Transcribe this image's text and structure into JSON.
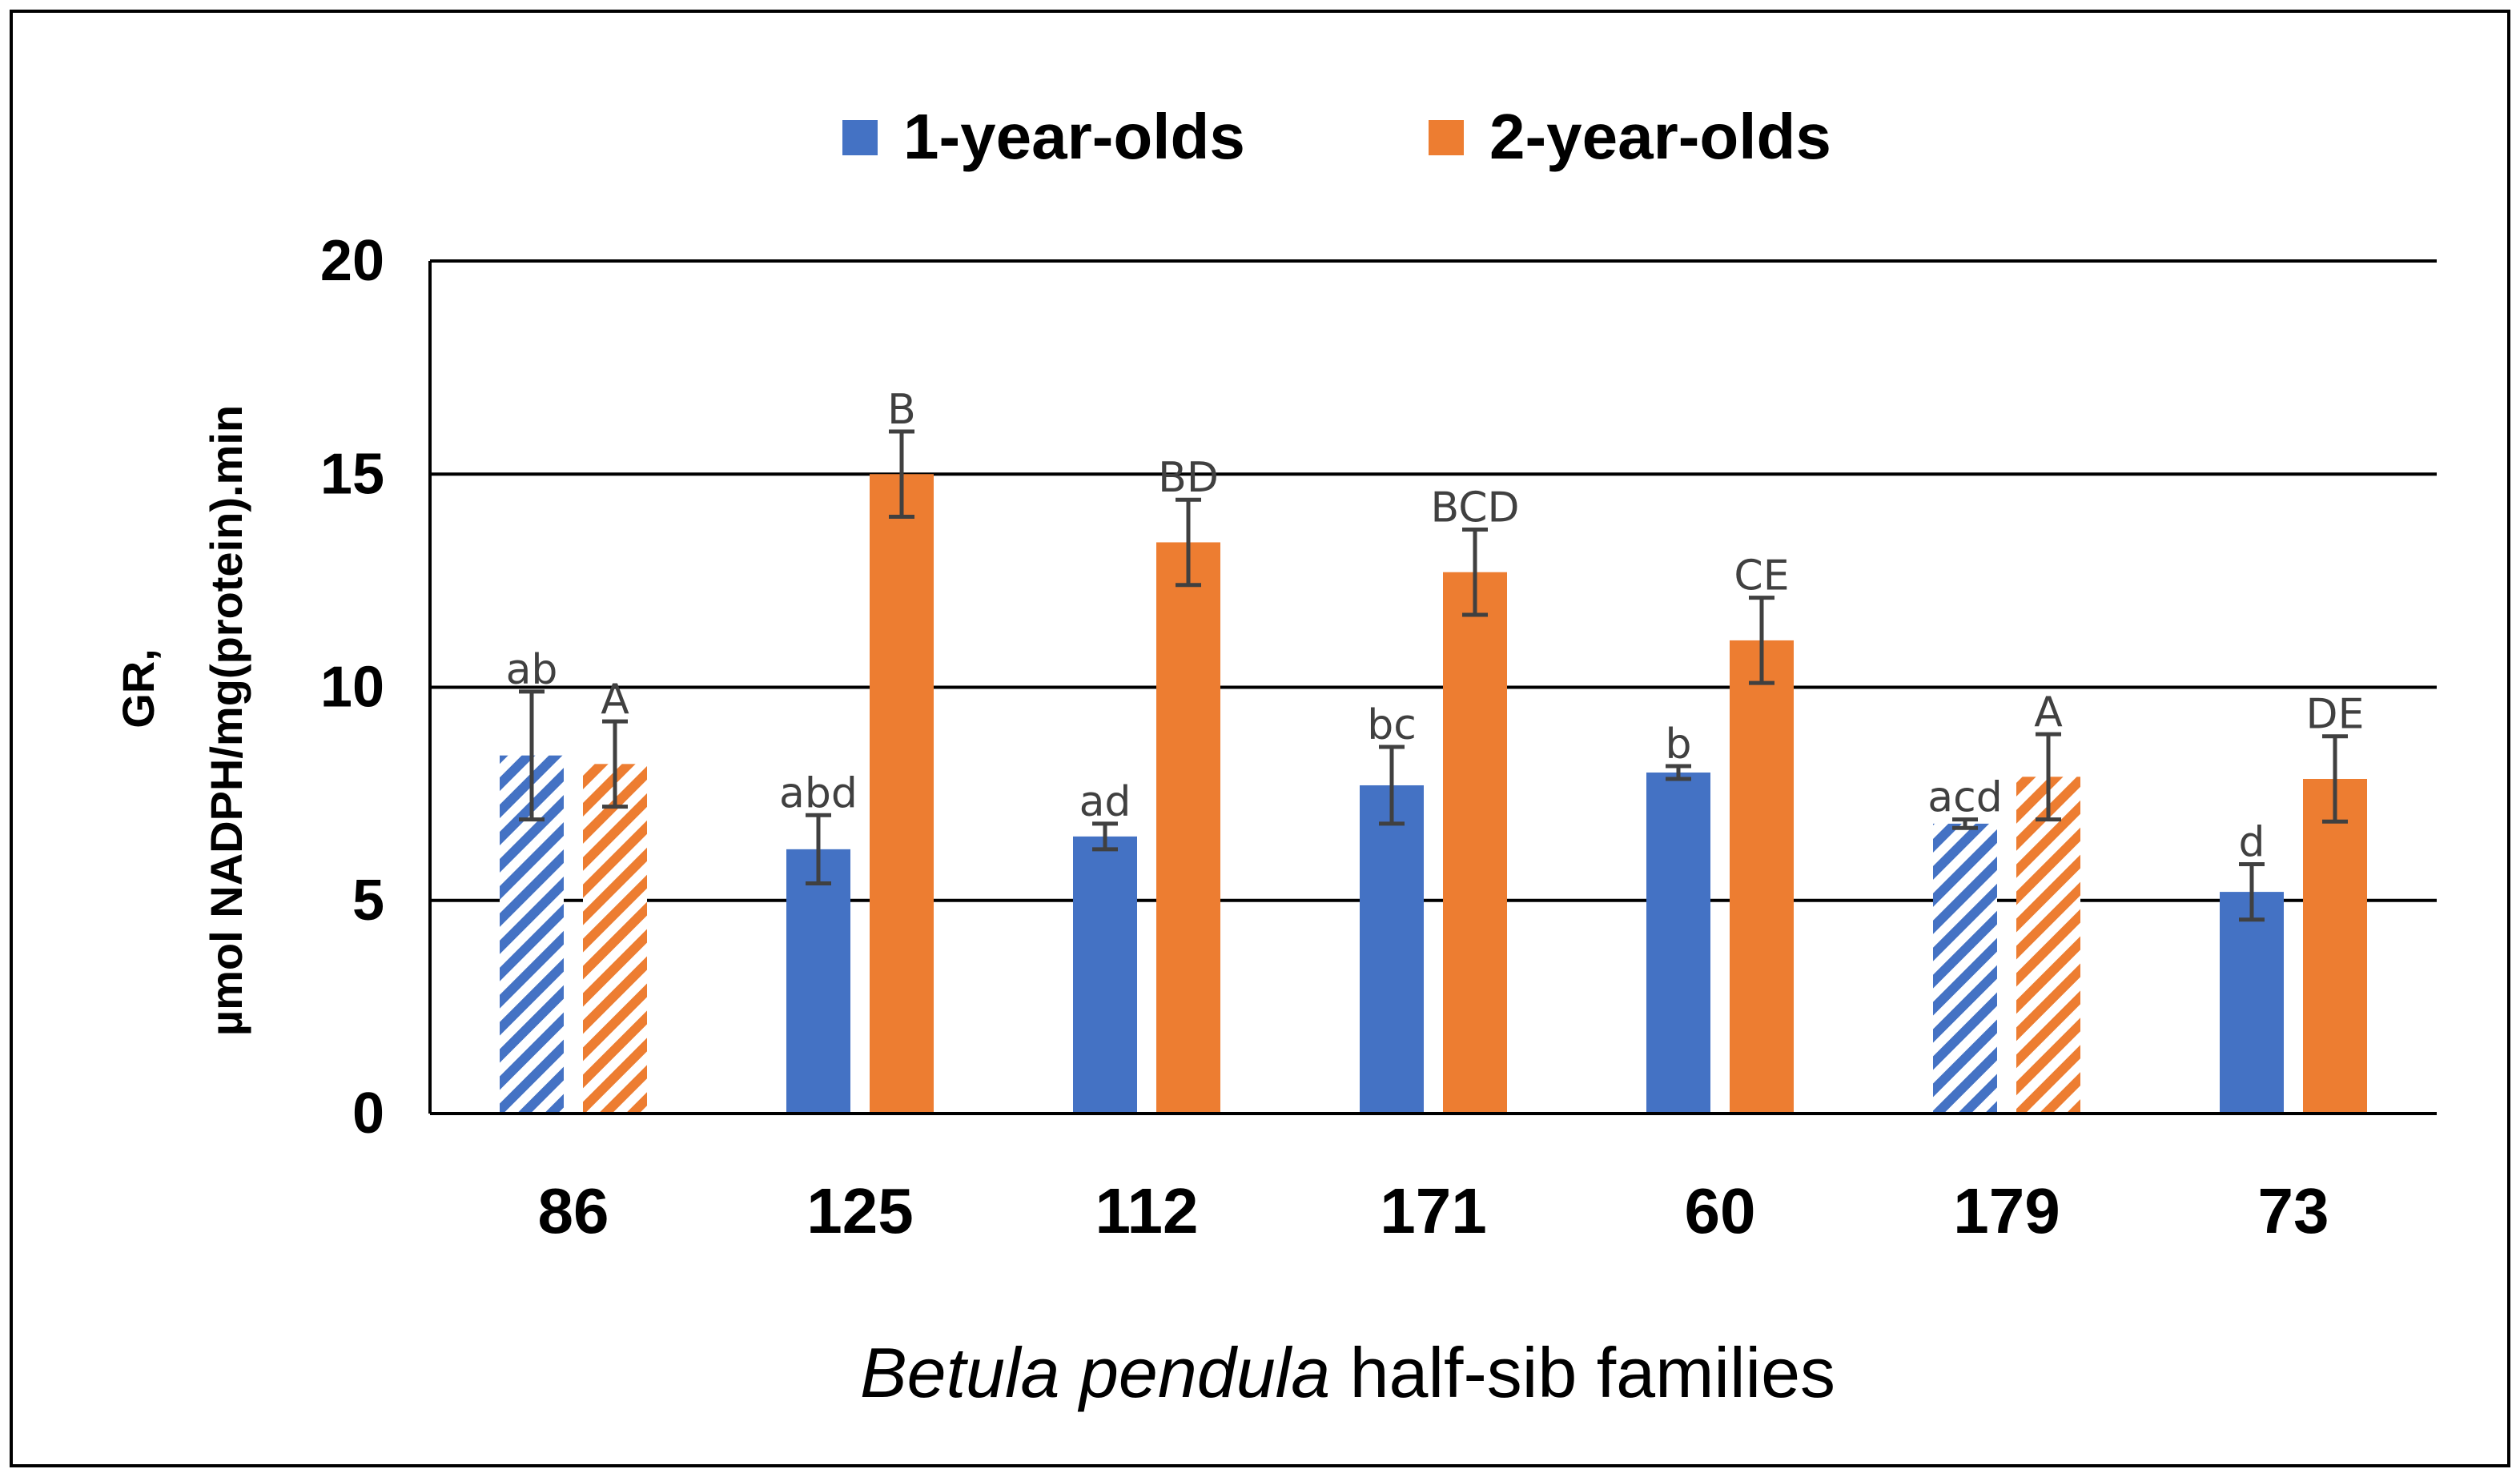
{
  "chart_data": {
    "type": "bar",
    "title": "",
    "xlabel_italic": "Betula pendula",
    "xlabel_rest": " half-sib families",
    "ylabel_line1": "GR,",
    "ylabel_line2": "µmol NADPH/mg(protein).min",
    "ylim": [
      0,
      20
    ],
    "yticks": [
      0,
      5,
      10,
      15,
      20
    ],
    "ytick_labels": [
      "0",
      "5",
      "10",
      "15",
      "20"
    ],
    "grid": true,
    "legend_position": "top-center",
    "categories": [
      "86",
      "125",
      "112",
      "171",
      "60",
      "179",
      "73"
    ],
    "hatched_categories": [
      "86",
      "179"
    ],
    "series": [
      {
        "name": "1-year-olds",
        "color": "#4472C4",
        "values": [
          8.4,
          6.2,
          6.5,
          7.7,
          8.0,
          6.8,
          5.2
        ],
        "errors": [
          1.5,
          0.8,
          0.3,
          0.9,
          0.15,
          0.1,
          0.65
        ],
        "letters": [
          "ab",
          "abd",
          "ad",
          "bc",
          "b",
          "acd",
          "d"
        ]
      },
      {
        "name": "2-year-olds",
        "color": "#ED7D31",
        "values": [
          8.2,
          15.0,
          13.4,
          12.7,
          11.1,
          7.9,
          7.85
        ],
        "errors": [
          1.0,
          1.0,
          1.0,
          1.0,
          1.0,
          1.0,
          1.0
        ],
        "letters": [
          "A",
          "B",
          "BD",
          "BCD",
          "CE",
          "A",
          "DE"
        ]
      }
    ]
  }
}
